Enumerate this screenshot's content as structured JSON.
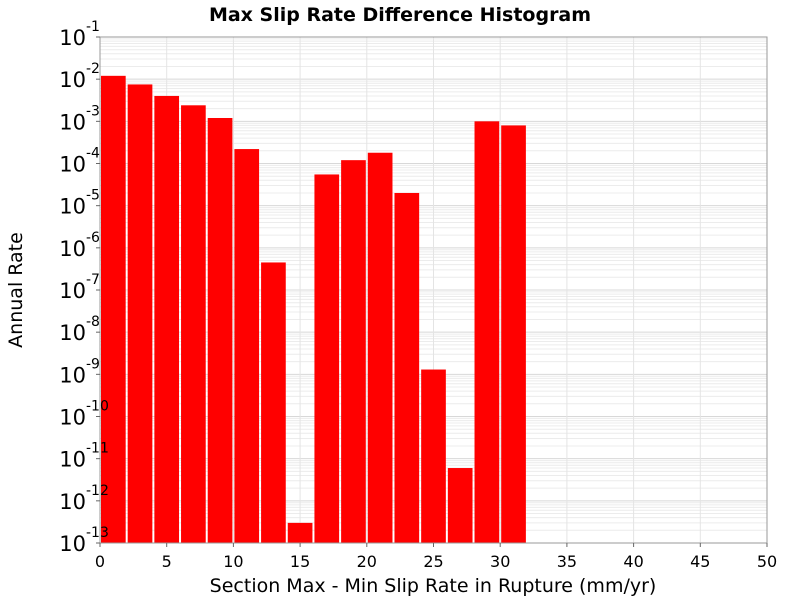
{
  "chart_data": {
    "type": "bar",
    "title": "Max Slip Rate Difference Histogram",
    "xlabel": "Section Max - Min Slip Rate in Rupture (mm/yr)",
    "ylabel": "Annual Rate",
    "xlim": [
      0,
      50
    ],
    "ylim": [
      1e-13,
      0.1
    ],
    "yscale": "log",
    "grid": true,
    "bar_color": "#ff0000",
    "bin_width": 2,
    "x_ticks": [
      0,
      5,
      10,
      15,
      20,
      25,
      30,
      35,
      40,
      45,
      50
    ],
    "y_ticks": [
      {
        "base": "10",
        "exp": "-1"
      },
      {
        "base": "10",
        "exp": "-2"
      },
      {
        "base": "10",
        "exp": "-3"
      },
      {
        "base": "10",
        "exp": "-4"
      },
      {
        "base": "10",
        "exp": "-5"
      },
      {
        "base": "10",
        "exp": "-6"
      },
      {
        "base": "10",
        "exp": "-7"
      },
      {
        "base": "10",
        "exp": "-8"
      },
      {
        "base": "10",
        "exp": "-9"
      },
      {
        "base": "10",
        "exp": "-10"
      },
      {
        "base": "10",
        "exp": "-11"
      },
      {
        "base": "10",
        "exp": "-12"
      },
      {
        "base": "10",
        "exp": "-13"
      }
    ],
    "x": [
      1,
      3,
      5,
      7,
      9,
      11,
      13,
      15,
      17,
      19,
      21,
      23,
      25,
      27,
      29,
      31
    ],
    "values": [
      0.012,
      0.0075,
      0.004,
      0.0024,
      0.0012,
      0.00022,
      4.5e-07,
      3e-13,
      5.5e-05,
      0.00012,
      0.00018,
      2e-05,
      1.3e-09,
      6e-12,
      0.001,
      0.0008
    ]
  }
}
